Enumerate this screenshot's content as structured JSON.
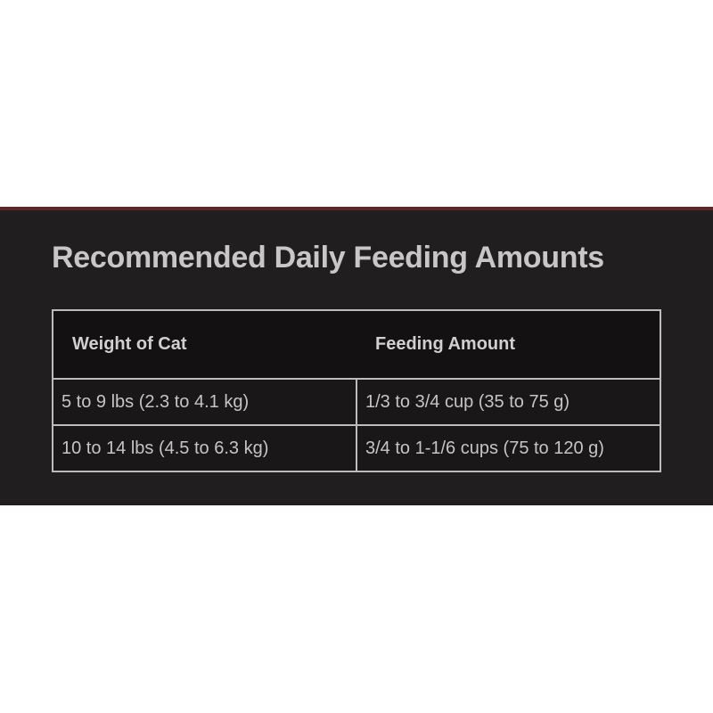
{
  "section": {
    "title": "Recommended Daily Feeding Amounts"
  },
  "table": {
    "columns": [
      "Weight of Cat",
      "Feeding Amount"
    ],
    "rows": [
      [
        "5 to 9 lbs (2.3 to 4.1 kg)",
        "1/3 to 3/4 cup (35 to 75 g)"
      ],
      [
        "10 to 14 lbs (4.5 to 6.3 kg)",
        "3/4 to 1-1/6 cups (75 to 120 g)"
      ]
    ]
  },
  "colors": {
    "accent_line": "#5d2726",
    "section_bg": "#211e1f",
    "table_header_bg": "#141112",
    "table_cell_bg": "#1a1718",
    "table_border": "#bdbcbc",
    "title_text": "#c8c6c6",
    "header_text": "#d1cfcf",
    "body_text": "#c6c4c4"
  }
}
